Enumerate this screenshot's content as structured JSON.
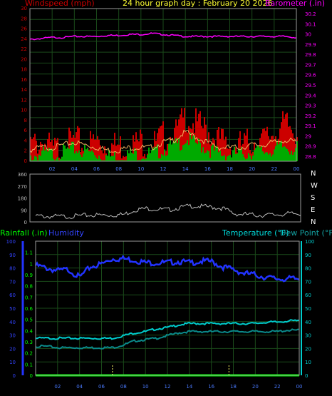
{
  "header": {
    "wind_label": "Windspeed (mph)",
    "title": "24 hour graph day : February 20 2026",
    "baro_label": "Barometer (.in)",
    "rain_label": "Rainfall (.in)",
    "hum_label": "Humidity",
    "temp_label": "Temperature (°F)",
    "dew_label": "Dew Point (°F)"
  },
  "colors": {
    "wind": "#cc0000",
    "barometer": "#ff00ff",
    "rain": "#00ff00",
    "humidity": "#2233ff",
    "temperature": "#00cccc",
    "dewpoint": "#0a8a8a",
    "gridline": "#1a4a1a",
    "frame": "#9a9a9a"
  },
  "chart_data": [
    {
      "type": "area",
      "name": "wind_and_barometer",
      "x_ticks": [
        "02",
        "04",
        "06",
        "08",
        "10",
        "12",
        "14",
        "16",
        "18",
        "20",
        "22",
        "00"
      ],
      "y_left_ticks": [
        "0",
        "2",
        "4",
        "6",
        "8",
        "10",
        "12",
        "14",
        "16",
        "18",
        "20",
        "22",
        "24",
        "26",
        "28",
        "30"
      ],
      "y_right_ticks": [
        "28.8",
        "28.9",
        "29",
        "29.1",
        "29.2",
        "29.3",
        "29.4",
        "29.5",
        "29.6",
        "29.7",
        "29.8",
        "29.9",
        "30",
        "30.1",
        "30.2"
      ],
      "ylim_left": [
        0,
        30
      ],
      "ylim_right": [
        28.75,
        30.25
      ],
      "hours": [
        0,
        1,
        2,
        3,
        4,
        5,
        6,
        7,
        8,
        9,
        10,
        11,
        12,
        13,
        14,
        15,
        16,
        17,
        18,
        19,
        20,
        21,
        22,
        23,
        24
      ],
      "series": [
        {
          "name": "Windspeed (mph)",
          "role": "gust",
          "values": [
            4,
            5,
            3,
            4,
            5,
            4,
            5,
            4,
            4,
            4,
            5,
            4,
            6,
            6,
            10,
            8,
            7,
            5,
            4,
            4,
            5,
            5,
            7,
            8,
            7
          ]
        },
        {
          "name": "Windspeed (mph)",
          "role": "average",
          "values": [
            1.5,
            2,
            2,
            2.5,
            3,
            2.5,
            2,
            1.5,
            1.5,
            2,
            2,
            2,
            3,
            3.5,
            5,
            4,
            3,
            2,
            2,
            2,
            2.5,
            2.5,
            3,
            3.5,
            3
          ]
        },
        {
          "name": "Barometer (.in)",
          "values": [
            29.95,
            29.96,
            29.97,
            29.97,
            29.98,
            29.98,
            29.98,
            29.99,
            29.99,
            30.0,
            30.0,
            30.01,
            30.0,
            29.99,
            29.98,
            29.98,
            29.98,
            29.98,
            29.98,
            29.98,
            29.98,
            29.98,
            29.98,
            29.98,
            29.97
          ]
        }
      ]
    },
    {
      "type": "line",
      "name": "wind_direction",
      "y_ticks": [
        "360",
        "270",
        "180",
        "90",
        "0"
      ],
      "ylim": [
        0,
        360
      ],
      "direction_labels": [
        "N",
        "W",
        "S",
        "E",
        "N"
      ],
      "hours": [
        0,
        1,
        2,
        3,
        4,
        5,
        6,
        7,
        8,
        9,
        10,
        11,
        12,
        13,
        14,
        15,
        16,
        17,
        18,
        19,
        20,
        21,
        22,
        23,
        24
      ],
      "values": [
        55,
        50,
        50,
        50,
        55,
        60,
        60,
        60,
        65,
        100,
        110,
        105,
        100,
        115,
        130,
        125,
        120,
        110,
        70,
        65,
        60,
        60,
        65,
        70,
        70
      ]
    },
    {
      "type": "line",
      "name": "rain_humidity_temperature",
      "x_ticks": [
        "02",
        "04",
        "06",
        "08",
        "10",
        "12",
        "14",
        "16",
        "18",
        "20",
        "22",
        "00"
      ],
      "y_rain_ticks": [
        "0",
        "0.1",
        "0.2",
        "0.3",
        "0.4",
        "0.5",
        "0.6",
        "0.7",
        "0.8",
        "0.9",
        "1",
        "1.1"
      ],
      "y_humidity_ticks": [
        "0",
        "10",
        "20",
        "30",
        "40",
        "50",
        "60",
        "70",
        "80",
        "90",
        "100"
      ],
      "y_temp_ticks": [
        "0",
        "10",
        "20",
        "30",
        "40",
        "50",
        "60",
        "70",
        "80",
        "90",
        "100"
      ],
      "ylim_temp": [
        0,
        100
      ],
      "hours": [
        0,
        1,
        2,
        3,
        4,
        5,
        6,
        7,
        8,
        9,
        10,
        11,
        12,
        13,
        14,
        15,
        16,
        17,
        18,
        19,
        20,
        21,
        22,
        23,
        24
      ],
      "series": [
        {
          "name": "Humidity",
          "values": [
            83,
            81,
            79,
            80,
            74,
            82,
            84,
            88,
            88,
            87,
            85,
            85,
            85,
            86,
            85,
            86,
            86,
            82,
            80,
            77,
            76,
            74,
            73,
            73,
            73
          ]
        },
        {
          "name": "Temperature (°F)",
          "values": [
            28,
            28,
            28,
            28,
            28,
            28,
            28,
            28,
            30,
            32,
            33,
            35,
            36,
            38,
            39,
            39,
            39,
            39,
            39,
            39,
            39,
            40,
            40,
            41,
            41
          ]
        },
        {
          "name": "Dew Point (°F)",
          "values": [
            22,
            22,
            21,
            21,
            21,
            21,
            21,
            21,
            23,
            26,
            27,
            28,
            30,
            32,
            33,
            33,
            33,
            33,
            33,
            33,
            33,
            33,
            33,
            34,
            34
          ]
        },
        {
          "name": "Rainfall (.in)",
          "values": [
            0,
            0,
            0,
            0,
            0,
            0,
            0,
            0,
            0,
            0,
            0,
            0,
            0,
            0,
            0,
            0,
            0,
            0,
            0,
            0,
            0,
            0,
            0,
            0,
            0
          ]
        }
      ]
    }
  ]
}
